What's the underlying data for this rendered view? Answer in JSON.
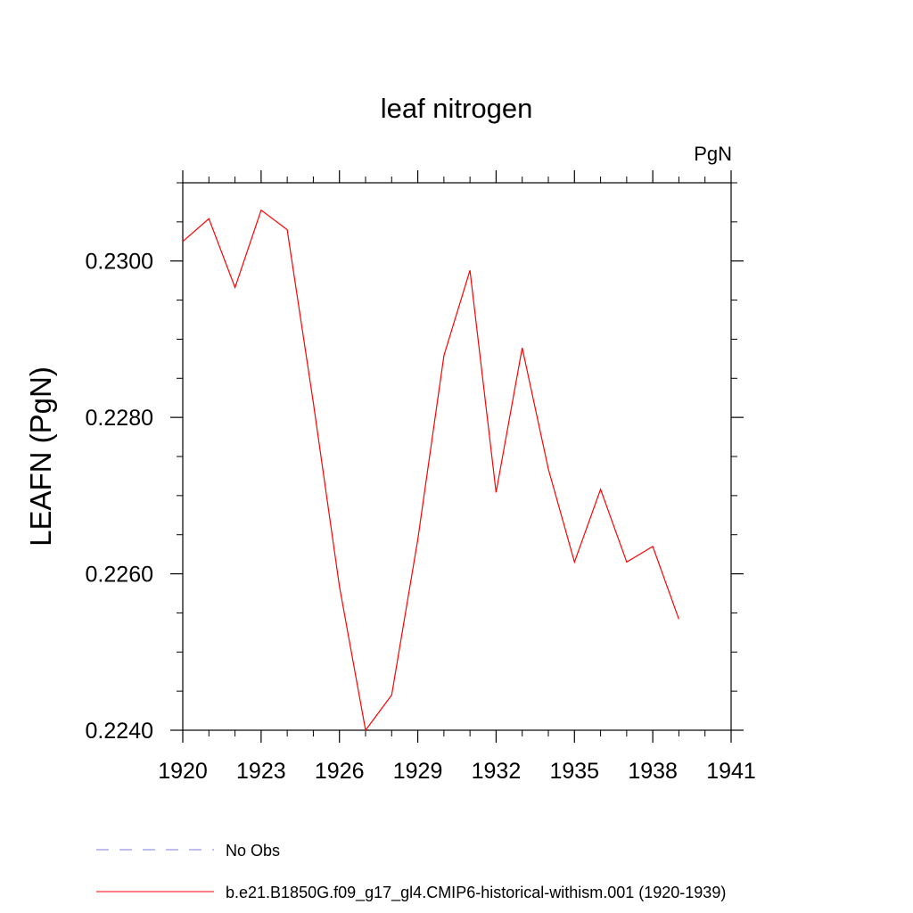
{
  "chart_data": {
    "type": "line",
    "title": "leaf nitrogen",
    "units": "PgN",
    "xlabel": "",
    "ylabel": "LEAFN  (PgN)",
    "xlim": [
      1920,
      1941
    ],
    "ylim": [
      0.224,
      0.231
    ],
    "x_ticks": [
      1920,
      1923,
      1926,
      1929,
      1932,
      1935,
      1938,
      1941
    ],
    "x_tick_labels": [
      "1920",
      "1923",
      "1926",
      "1929",
      "1932",
      "1935",
      "1938",
      "1941"
    ],
    "y_ticks": [
      0.224,
      0.226,
      0.228,
      0.23
    ],
    "y_tick_labels": [
      "0.2240",
      "0.2260",
      "0.2280",
      "0.2300"
    ],
    "grid": false,
    "legend_position": "bottom",
    "series": [
      {
        "name": "b.e21.B1850G.f09_g17_gl4.CMIP6-historical-withism.001 (1920-1939)",
        "color": "#ff0000",
        "style": "solid",
        "x": [
          1920,
          1921,
          1922,
          1923,
          1924,
          1925,
          1926,
          1927,
          1928,
          1929,
          1930,
          1931,
          1932,
          1933,
          1934,
          1935,
          1936,
          1937,
          1938,
          1939
        ],
        "y": [
          0.23025,
          0.23054,
          0.22966,
          0.23065,
          0.2304,
          0.22819,
          0.22584,
          0.224,
          0.22445,
          0.22644,
          0.22879,
          0.22988,
          0.22704,
          0.22889,
          0.22734,
          0.22615,
          0.22708,
          0.22615,
          0.22635,
          0.22542
        ]
      }
    ],
    "legend": [
      {
        "label": "No Obs",
        "color": "#7f7fdf",
        "style": "dashed"
      },
      {
        "label": "b.e21.B1850G.f09_g17_gl4.CMIP6-historical-withism.001 (1920-1939)",
        "color": "#ff0000",
        "style": "solid"
      }
    ]
  }
}
